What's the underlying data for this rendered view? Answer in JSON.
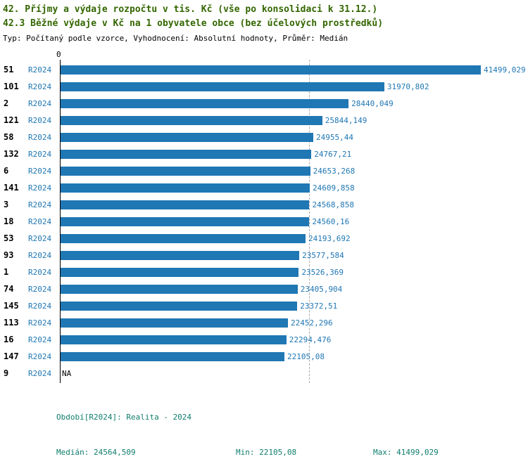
{
  "page": {
    "title_line1": "42. Příjmy a výdaje rozpočtu v tis. Kč (vše po konsolidaci k 31.12.)",
    "title_line2": "42.3 Běžné výdaje v Kč na 1 obyvatele obce (bez účelových prostředků)",
    "subtitle": "Typ: Počítaný podle vzorce, Vyhodnocení: Absolutní hodnoty, Průměr: Medián"
  },
  "colors": {
    "bar": "#1f77b4",
    "title": "#336600",
    "footer": "#0f7d6c",
    "row_number": "#000000",
    "na_value": "#000000",
    "median_line": "#aaaaaa"
  },
  "axis": {
    "zero_tick": "0"
  },
  "series_label": "R2024",
  "chart_data": {
    "type": "bar",
    "orientation": "horizontal",
    "title": "42.3 Běžné výdaje v Kč na 1 obyvatele obce (bez účelových prostředků)",
    "categories": [
      "51",
      "101",
      "2",
      "121",
      "58",
      "132",
      "6",
      "141",
      "3",
      "18",
      "53",
      "93",
      "1",
      "74",
      "145",
      "113",
      "16",
      "147",
      "9"
    ],
    "series": [
      {
        "name": "R2024",
        "values": [
          41499.029,
          31970.802,
          28440.049,
          25844.149,
          24955.44,
          24767.21,
          24653.268,
          24609.858,
          24568.858,
          24560.16,
          24193.692,
          23577.584,
          23526.369,
          23405.904,
          23372.51,
          22452.296,
          22294.476,
          22105.08,
          null
        ]
      }
    ],
    "value_labels": [
      "41499,029",
      "31970,802",
      "28440,049",
      "25844,149",
      "24955,44",
      "24767,21",
      "24653,268",
      "24609,858",
      "24568,858",
      "24560,16",
      "24193,692",
      "23577,584",
      "23526,369",
      "23405,904",
      "23372,51",
      "22452,296",
      "22294,476",
      "22105,08",
      "NA"
    ],
    "x_axis_ticks": [
      "0"
    ],
    "xlim": [
      0,
      43600
    ],
    "median": 24564.509,
    "min": 22105.08,
    "max": 41499.029,
    "legend": "none",
    "grid": "vertical dashed median line only"
  },
  "footer": {
    "period": "Období[R2024]: Realita - 2024",
    "median": "Medián: 24564,509",
    "min": "Min: 22105,08",
    "max": "Max: 41499,029"
  }
}
